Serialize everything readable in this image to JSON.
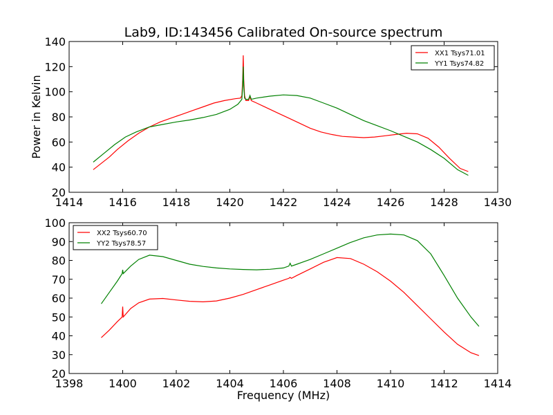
{
  "title": "Lab9, ID:143456 Calibrated On-source spectrum",
  "chart_data": [
    {
      "type": "line",
      "title": "Lab9, ID:143456 Calibrated On-source spectrum",
      "xlabel": "",
      "ylabel": "Power in Kelvin",
      "xlim": [
        1414,
        1430
      ],
      "ylim": [
        20,
        140
      ],
      "xticks": [
        1414,
        1416,
        1418,
        1420,
        1422,
        1424,
        1426,
        1428,
        1430
      ],
      "yticks": [
        20,
        40,
        60,
        80,
        100,
        120,
        140
      ],
      "xtick_labels": [
        "1414",
        "1416",
        "1418",
        "1420",
        "1422",
        "1424",
        "1426",
        "1428",
        "1430"
      ],
      "ytick_labels": [
        "20",
        "40",
        "60",
        "80",
        "100",
        "120",
        "140"
      ],
      "legend_position": "top-right",
      "series": [
        {
          "name": "XX1 Tsys71.01",
          "color": "#ff0000",
          "x": [
            1414.9,
            1415.2,
            1415.5,
            1415.8,
            1416.2,
            1416.6,
            1417.0,
            1417.4,
            1417.8,
            1418.2,
            1418.6,
            1419.0,
            1419.4,
            1419.8,
            1420.2,
            1420.4,
            1420.45,
            1420.48,
            1420.5,
            1420.52,
            1420.55,
            1420.6,
            1420.7,
            1420.75,
            1420.8,
            1421.0,
            1421.4,
            1421.8,
            1422.2,
            1422.6,
            1423.0,
            1423.4,
            1423.8,
            1424.2,
            1424.6,
            1425.0,
            1425.4,
            1425.8,
            1426.2,
            1426.6,
            1427.0,
            1427.4,
            1427.8,
            1428.2,
            1428.6,
            1428.9
          ],
          "values": [
            38,
            43,
            48,
            54,
            61,
            67,
            72,
            76,
            79,
            82,
            85,
            88,
            91,
            93,
            94.5,
            95,
            97,
            110,
            129,
            110,
            97,
            93,
            93,
            96,
            93,
            91,
            87,
            83,
            79,
            75,
            71,
            68,
            66,
            64.5,
            64,
            63.5,
            64,
            65,
            66,
            67,
            66.5,
            63,
            56,
            47,
            39,
            36.5
          ]
        },
        {
          "name": "YY1 Tsys74.82",
          "color": "#008000",
          "x": [
            1414.9,
            1415.3,
            1415.7,
            1416.1,
            1416.5,
            1417.0,
            1417.5,
            1418.0,
            1418.5,
            1419.0,
            1419.5,
            1420.0,
            1420.3,
            1420.45,
            1420.48,
            1420.5,
            1420.52,
            1420.55,
            1420.6,
            1420.7,
            1420.75,
            1420.8,
            1421.0,
            1421.5,
            1422.0,
            1422.5,
            1423.0,
            1423.5,
            1424.0,
            1424.5,
            1425.0,
            1425.5,
            1426.0,
            1426.5,
            1427.0,
            1427.5,
            1428.0,
            1428.5,
            1428.9
          ],
          "values": [
            44,
            51,
            58,
            64,
            68,
            72,
            74,
            76,
            77.5,
            79.5,
            82,
            86,
            90,
            94,
            105,
            120,
            105,
            95,
            94,
            94,
            97,
            94,
            95,
            96.5,
            97.5,
            97,
            95,
            91,
            87,
            82,
            77,
            73,
            69,
            64.5,
            60,
            54,
            47,
            38,
            33.5
          ]
        }
      ]
    },
    {
      "type": "line",
      "title": "",
      "xlabel": "Frequency (MHz)",
      "ylabel": "",
      "xlim": [
        1398,
        1414
      ],
      "ylim": [
        20,
        100
      ],
      "xticks": [
        1398,
        1400,
        1402,
        1404,
        1406,
        1408,
        1410,
        1412,
        1414
      ],
      "yticks": [
        20,
        30,
        40,
        50,
        60,
        70,
        80,
        90,
        100
      ],
      "xtick_labels": [
        "1398",
        "1400",
        "1402",
        "1404",
        "1406",
        "1408",
        "1410",
        "1412",
        "1414"
      ],
      "ytick_labels": [
        "20",
        "30",
        "40",
        "50",
        "60",
        "70",
        "80",
        "90",
        "100"
      ],
      "legend_position": "top-left",
      "series": [
        {
          "name": "XX2 Tsys60.70",
          "color": "#ff0000",
          "x": [
            1399.2,
            1399.5,
            1399.8,
            1399.98,
            1400.0,
            1400.02,
            1400.3,
            1400.6,
            1401.0,
            1401.5,
            1402.0,
            1402.5,
            1403.0,
            1403.5,
            1404.0,
            1404.5,
            1405.0,
            1405.5,
            1406.0,
            1406.2,
            1406.25,
            1406.3,
            1406.5,
            1407.0,
            1407.5,
            1408.0,
            1408.5,
            1409.0,
            1409.5,
            1410.0,
            1410.5,
            1411.0,
            1411.5,
            1412.0,
            1412.5,
            1413.0,
            1413.3
          ],
          "values": [
            39,
            43,
            47.5,
            50,
            55.5,
            50,
            54.5,
            57.5,
            59.5,
            59.8,
            59,
            58.3,
            58,
            58.5,
            60,
            62,
            64.5,
            67,
            69.5,
            70.5,
            71,
            70.5,
            72,
            75.5,
            79,
            81.5,
            81,
            78,
            74,
            69,
            63,
            56,
            49,
            42,
            35.5,
            31,
            29.5
          ]
        },
        {
          "name": "YY2 Tsys78.57",
          "color": "#008000",
          "x": [
            1399.2,
            1399.5,
            1399.8,
            1399.98,
            1400.0,
            1400.02,
            1400.3,
            1400.6,
            1401.0,
            1401.5,
            1402.0,
            1402.5,
            1403.0,
            1403.5,
            1404.0,
            1404.5,
            1405.0,
            1405.5,
            1406.0,
            1406.2,
            1406.25,
            1406.3,
            1406.5,
            1407.0,
            1407.5,
            1408.0,
            1408.5,
            1409.0,
            1409.5,
            1410.0,
            1410.5,
            1411.0,
            1411.5,
            1412.0,
            1412.5,
            1413.0,
            1413.3
          ],
          "values": [
            57,
            63,
            69,
            73,
            75,
            73,
            77,
            80.5,
            82.8,
            82,
            80,
            78,
            76.8,
            76,
            75.5,
            75.2,
            75,
            75.3,
            76,
            77,
            78.5,
            77,
            78,
            80.5,
            83.5,
            86.5,
            89.5,
            92,
            93.5,
            94,
            93.5,
            90.5,
            83.5,
            72,
            60,
            50,
            45
          ]
        }
      ]
    }
  ]
}
